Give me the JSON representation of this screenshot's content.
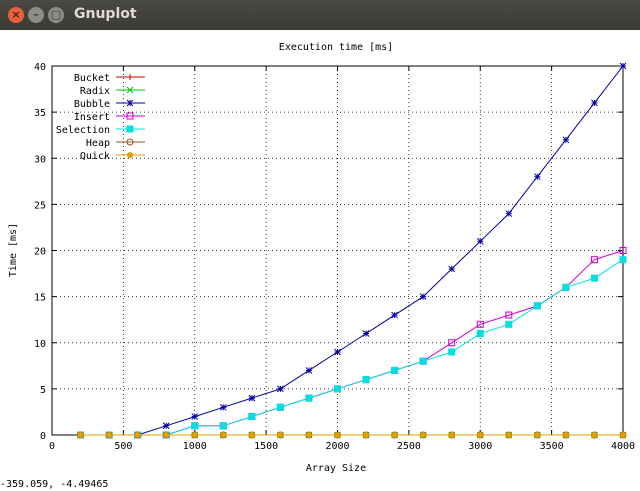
{
  "window": {
    "title": "Gnuplot",
    "close_glyph": "×",
    "minimize_glyph": "–",
    "maximize_glyph": "□"
  },
  "status_bar": {
    "coords": "-359.059, -4.49465"
  },
  "chart_data": {
    "type": "line",
    "title": "Execution time [ms]",
    "xlabel": "Array Size",
    "ylabel": "Time [ms]",
    "xlim": [
      0,
      4000
    ],
    "ylim": [
      0,
      40
    ],
    "xticks": [
      0,
      500,
      1000,
      1500,
      2000,
      2500,
      3000,
      3500,
      4000
    ],
    "yticks": [
      0,
      5,
      10,
      15,
      20,
      25,
      30,
      35,
      40
    ],
    "grid": true,
    "legend_position": "top-left",
    "x": [
      200,
      400,
      600,
      800,
      1000,
      1200,
      1400,
      1600,
      1800,
      2000,
      2200,
      2400,
      2600,
      2800,
      3000,
      3200,
      3400,
      3600,
      3800,
      4000
    ],
    "series": [
      {
        "name": "Bucket",
        "color": "#c00000",
        "marker": "plus",
        "values": [
          0,
          0,
          0,
          0,
          0,
          0,
          0,
          0,
          0,
          0,
          0,
          0,
          0,
          0,
          0,
          0,
          0,
          0,
          0,
          0
        ]
      },
      {
        "name": "Radix",
        "color": "#00cc00",
        "marker": "cross",
        "values": [
          0,
          0,
          0,
          0,
          0,
          0,
          0,
          0,
          0,
          0,
          0,
          0,
          0,
          0,
          0,
          0,
          0,
          0,
          0,
          0
        ]
      },
      {
        "name": "Bubble",
        "color": "#0000a0",
        "marker": "star",
        "values": [
          0,
          0,
          0,
          1,
          2,
          3,
          4,
          5,
          7,
          9,
          11,
          13,
          15,
          18,
          21,
          24,
          28,
          32,
          36,
          40
        ]
      },
      {
        "name": "Insert",
        "color": "#cc00cc",
        "marker": "box",
        "values": [
          0,
          0,
          0,
          0,
          1,
          1,
          2,
          3,
          4,
          5,
          6,
          7,
          8,
          10,
          12,
          13,
          14,
          16,
          19,
          20
        ]
      },
      {
        "name": "Selection",
        "color": "#00e0e0",
        "marker": "filledbox",
        "values": [
          0,
          0,
          0,
          0,
          1,
          1,
          2,
          3,
          4,
          5,
          6,
          7,
          8,
          9,
          11,
          12,
          14,
          16,
          17,
          19
        ]
      },
      {
        "name": "Heap",
        "color": "#a05020",
        "marker": "circle",
        "values": [
          0,
          0,
          0,
          0,
          0,
          0,
          0,
          0,
          0,
          0,
          0,
          0,
          0,
          0,
          0,
          0,
          0,
          0,
          0,
          0
        ]
      },
      {
        "name": "Quick",
        "color": "#e0a000",
        "marker": "filledcircle",
        "values": [
          0,
          0,
          0,
          0,
          0,
          0,
          0,
          0,
          0,
          0,
          0,
          0,
          0,
          0,
          0,
          0,
          0,
          0,
          0,
          0
        ]
      }
    ]
  }
}
